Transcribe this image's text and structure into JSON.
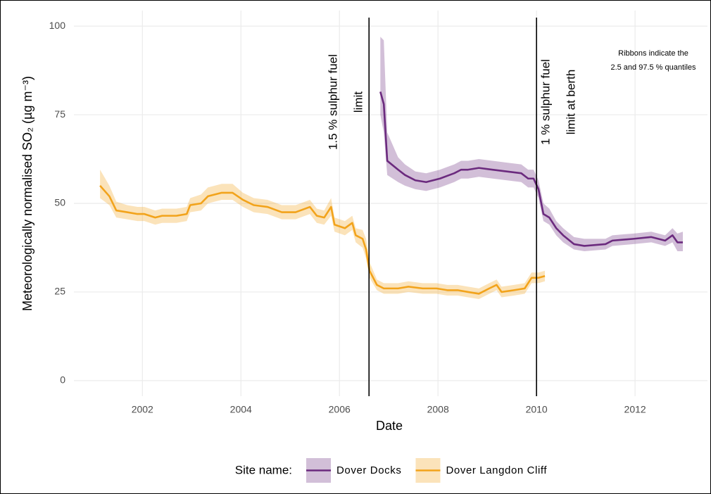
{
  "chart_data": {
    "type": "line",
    "x_label": "Date",
    "y_label": "Meteorologically normalised SO₂ (µg m⁻³)",
    "xlim": [
      2000.61,
      2013.47
    ],
    "ylim": [
      -4.4,
      104.4
    ],
    "xticks": [
      2002,
      2004,
      2006,
      2008,
      2010,
      2012
    ],
    "yticks": [
      0,
      25,
      50,
      75,
      100
    ],
    "grid": true,
    "legend_title": "Site name:",
    "legend_position": "bottom",
    "note": [
      "Ribbons indicate the",
      "2.5 and 97.5 % quantiles"
    ],
    "vlines": [
      {
        "x": 2006.6,
        "label": [
          "1.5 % sulphur fuel",
          "limit"
        ]
      },
      {
        "x": 2010.0,
        "label": [
          "1 % sulphur fuel",
          "limit at berth"
        ]
      }
    ],
    "series": [
      {
        "name": "Dover Docks",
        "color": "#6b2a7e",
        "x": [
          2006.83,
          2006.9,
          2006.97,
          2007.19,
          2007.33,
          2007.54,
          2007.76,
          2008.04,
          2008.33,
          2008.47,
          2008.61,
          2008.83,
          2009.11,
          2009.4,
          2009.69,
          2009.83,
          2009.94,
          2010.04,
          2010.14,
          2010.26,
          2010.4,
          2010.54,
          2010.76,
          2010.97,
          2011.4,
          2011.54,
          2011.97,
          2012.33,
          2012.61,
          2012.76,
          2012.86,
          2012.97
        ],
        "values": [
          81.5,
          78,
          62,
          59.5,
          58,
          56.5,
          56,
          57,
          58.5,
          59.5,
          59.5,
          60,
          59.5,
          59,
          58.5,
          57,
          57,
          54,
          47,
          46,
          43,
          41,
          38.5,
          38,
          38.5,
          39.5,
          40,
          40.5,
          39.5,
          41,
          39,
          39
        ],
        "lower": [
          75,
          70,
          58,
          56,
          55,
          54,
          53.5,
          54.5,
          56,
          57,
          57,
          57.5,
          57,
          56.5,
          56,
          54.5,
          54.5,
          51.5,
          45,
          44,
          41,
          39,
          37,
          36.5,
          37,
          38,
          38.5,
          39,
          38,
          39,
          36.5,
          36.5
        ],
        "upper": [
          97,
          96,
          70,
          63,
          61,
          59,
          58.5,
          59.5,
          61,
          62,
          62,
          62.5,
          62,
          61.5,
          61,
          59.5,
          59.5,
          56.5,
          50,
          48.5,
          45,
          43,
          40.5,
          40,
          40,
          41,
          41.5,
          42,
          41,
          43,
          41.5,
          42
        ]
      },
      {
        "name": "Dover Langdon Cliff",
        "color": "#f2a31b",
        "x": [
          2001.14,
          2001.33,
          2001.47,
          2001.69,
          2001.9,
          2002.04,
          2002.26,
          2002.4,
          2002.69,
          2002.9,
          2002.97,
          2003.19,
          2003.33,
          2003.61,
          2003.83,
          2004.04,
          2004.26,
          2004.54,
          2004.83,
          2005.11,
          2005.4,
          2005.54,
          2005.69,
          2005.83,
          2005.9,
          2006.11,
          2006.26,
          2006.33,
          2006.47,
          2006.54,
          2006.61,
          2006.76,
          2006.9,
          2007.19,
          2007.4,
          2007.69,
          2007.97,
          2008.19,
          2008.4,
          2008.61,
          2008.83,
          2009.04,
          2009.19,
          2009.29,
          2009.54,
          2009.76,
          2009.9,
          2010.04,
          2010.17
        ],
        "values": [
          55,
          52,
          48,
          47.5,
          47,
          47,
          46,
          46.5,
          46.5,
          47,
          49.5,
          50,
          52,
          53,
          53,
          51,
          49.5,
          49,
          47.5,
          47.5,
          49,
          46.5,
          46,
          49,
          44,
          43,
          44.5,
          41,
          40,
          37,
          31,
          27,
          26,
          26,
          26.5,
          26,
          26,
          25.5,
          25.5,
          25,
          24.5,
          26,
          27,
          25,
          25.5,
          26,
          29,
          29,
          29.5
        ],
        "lower": [
          51.5,
          49.5,
          46,
          45.5,
          45,
          45,
          44,
          44.5,
          44.5,
          45,
          47.5,
          48,
          50,
          51,
          51,
          49,
          47.5,
          47,
          45.5,
          45.5,
          47,
          44.5,
          44,
          46.5,
          42,
          41,
          42.5,
          39,
          37.5,
          34.5,
          29,
          25.5,
          24.5,
          24.5,
          25,
          24.5,
          24.5,
          24,
          24,
          23.5,
          23,
          24.5,
          25.5,
          23.5,
          24,
          24.5,
          27.5,
          27.5,
          28
        ],
        "upper": [
          59.5,
          55,
          50.5,
          49.5,
          49,
          49,
          48,
          48.5,
          48.5,
          49,
          51.5,
          52.5,
          54.5,
          55.5,
          55.5,
          53,
          51.5,
          51,
          49.5,
          49.5,
          51,
          48.5,
          48,
          51.5,
          46,
          45,
          46.5,
          43,
          42.5,
          40,
          33.5,
          28.5,
          27.5,
          27.5,
          28,
          27.5,
          27.5,
          27,
          27,
          26.5,
          26,
          27.5,
          28.5,
          26.5,
          27,
          27.5,
          30.5,
          30.5,
          31
        ]
      }
    ]
  }
}
